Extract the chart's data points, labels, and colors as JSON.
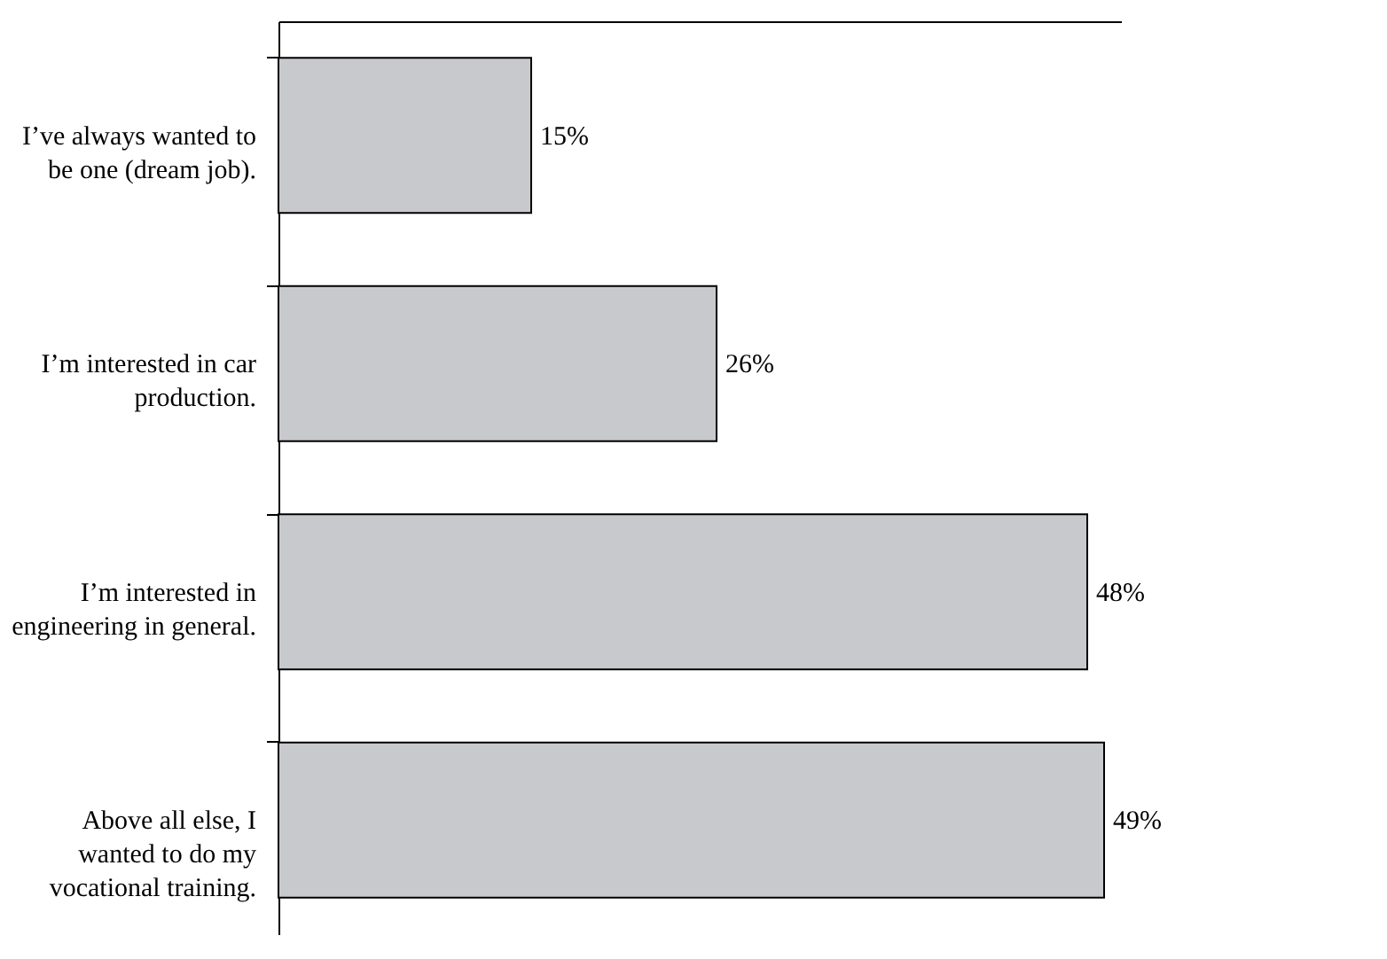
{
  "chart_data": {
    "type": "bar",
    "orientation": "horizontal",
    "categories": [
      "I’ve always wanted to be one (dream job).",
      "I’m interested in car production.",
      "I’m interested in engineering in general.",
      "Above all else, I wanted to do my vocational training."
    ],
    "values": [
      15,
      26,
      48,
      49
    ],
    "color": "#c8c9cc",
    "data_labels": true,
    "value_labels": [
      "15%",
      "26%",
      "48%",
      "49%"
    ],
    "tick_labels": "y",
    "grid": false
  }
}
